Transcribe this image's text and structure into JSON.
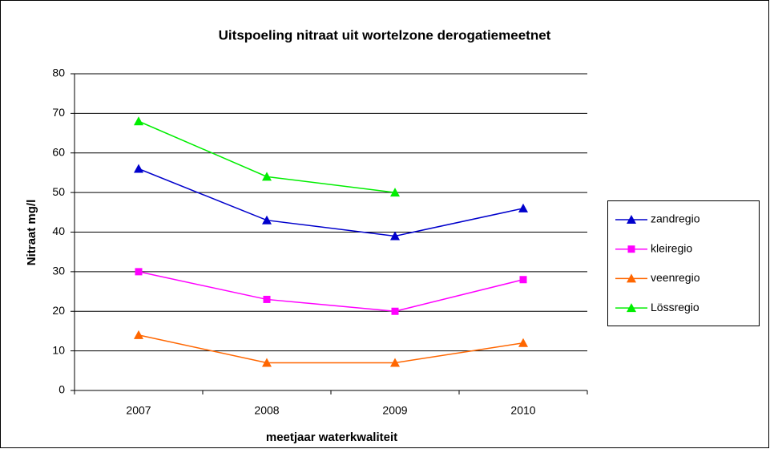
{
  "chart_data": {
    "type": "line",
    "title": "Uitspoeling nitraat uit wortelzone derogatiemeetnet",
    "x_label": "meetjaar waterkwaliteit",
    "y_label": "Nitraat mg/l",
    "categories": [
      "2007",
      "2008",
      "2009",
      "2010"
    ],
    "series": [
      {
        "name": "zandregio",
        "color": "#0000cc",
        "marker": "triangle",
        "values": [
          56,
          43,
          39,
          46
        ]
      },
      {
        "name": "kleiregio",
        "color": "#ff00ff",
        "marker": "square",
        "values": [
          30,
          23,
          20,
          28
        ]
      },
      {
        "name": "veenregio",
        "color": "#ff6600",
        "marker": "triangle",
        "values": [
          14,
          7,
          7,
          12
        ]
      },
      {
        "name": "Lössregio",
        "color": "#00ee00",
        "marker": "triangle",
        "values": [
          68,
          54,
          50,
          null
        ]
      }
    ],
    "ylim": [
      0,
      80
    ],
    "yticks": [
      0,
      10,
      20,
      30,
      40,
      50,
      60,
      70,
      80
    ],
    "grid": true,
    "legend": "right"
  }
}
